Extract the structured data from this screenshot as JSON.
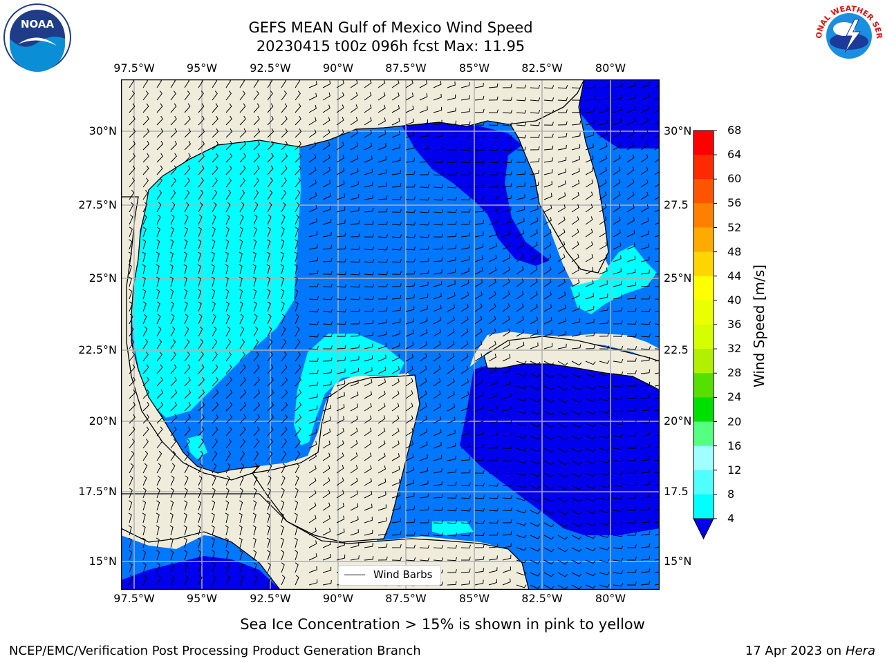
{
  "header": {
    "title_line1": "GEFS MEAN Gulf of Mexico Wind Speed",
    "title_line2": "20230415 t00z 096h fcst   Max: 11.95"
  },
  "map": {
    "lon_labels": [
      "97.5°W",
      "95°W",
      "92.5°W",
      "90°W",
      "87.5°W",
      "85°W",
      "82.5°W",
      "80°W"
    ],
    "lat_labels": [
      "30°N",
      "27.5°N",
      "25°N",
      "22.5°N",
      "20°N",
      "17.5°N",
      "15°N"
    ],
    "lat_labels_right": [
      "30°N",
      "27.5",
      "25°N",
      "22.5",
      "20°N",
      "17.5",
      "15°N"
    ],
    "colors": {
      "land": "#efecdc",
      "ocean_4_8": "#0077ff",
      "ocean_8_12": "#00ffff",
      "ocean_lt4": "#0000ee",
      "grid": "#b0b0b0"
    },
    "legend_label": "Wind Barbs"
  },
  "colorbar": {
    "ticks": [
      "68",
      "64",
      "60",
      "56",
      "52",
      "48",
      "44",
      "40",
      "36",
      "32",
      "28",
      "24",
      "20",
      "16",
      "12",
      "8",
      "4"
    ],
    "label": "Wind Speed [m/s]",
    "colors": [
      "#ff0000",
      "#ff2a00",
      "#ff5500",
      "#ff8000",
      "#ffaa00",
      "#ffd500",
      "#ffff00",
      "#eaff00",
      "#d5ff00",
      "#b0f000",
      "#55e000",
      "#00e000",
      "#55ff80",
      "#a0ffff",
      "#50ffff",
      "#00ffff",
      "#0077ff"
    ],
    "under_color": "#0000ee"
  },
  "caption": "Sea Ice Concentration > 15% is shown in pink to yellow",
  "footer": {
    "left": "NCEP/EMC/Verification Post Processing Product Generation Branch",
    "date": "17 Apr 2023 on ",
    "machine": "Hera"
  },
  "logos": {
    "left_text": "NOAA",
    "right_text": "NATIONAL WEATHER SERVICE"
  }
}
